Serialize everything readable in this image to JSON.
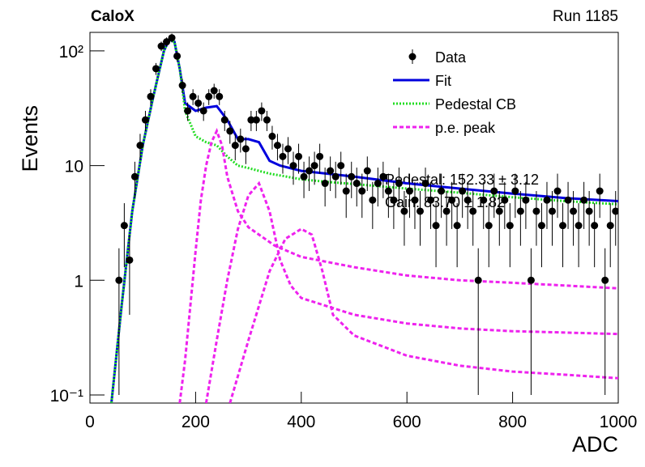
{
  "chart_data": {
    "type": "scatter",
    "title": "CaloX",
    "subtitle": "Run 1185",
    "x_label": "ADC",
    "y_label": "Events",
    "log_y": true,
    "xlim": [
      0,
      1000
    ],
    "xticks": [
      0,
      200,
      400,
      600,
      800,
      1000
    ],
    "ylim": [
      0.085,
      145
    ],
    "yticks": [
      {
        "value": 0.1,
        "label": "10⁻¹"
      },
      1,
      10,
      {
        "value": 100,
        "label": "10²"
      }
    ],
    "legend": "top-right",
    "annotations": [
      "Pedestal: 152.33 ± 3.12",
      "Gain: 83.70 ± 1.82"
    ],
    "series": [
      {
        "name": "Data",
        "color": "#000000",
        "style": "points",
        "x": [
          55,
          65,
          75,
          85,
          95,
          105,
          115,
          125,
          135,
          145,
          155,
          165,
          175,
          185,
          195,
          205,
          215,
          225,
          235,
          245,
          255,
          265,
          275,
          285,
          295,
          305,
          315,
          325,
          335,
          345,
          355,
          365,
          375,
          385,
          395,
          405,
          415,
          425,
          435,
          445,
          455,
          465,
          475,
          485,
          495,
          505,
          515,
          525,
          535,
          545,
          555,
          565,
          575,
          585,
          595,
          605,
          615,
          625,
          635,
          645,
          655,
          665,
          675,
          685,
          695,
          705,
          715,
          725,
          735,
          745,
          755,
          765,
          775,
          785,
          795,
          805,
          815,
          825,
          835,
          845,
          855,
          865,
          875,
          885,
          895,
          905,
          915,
          925,
          935,
          945,
          955,
          965,
          975,
          985,
          995
        ],
        "values": [
          1,
          3,
          1.5,
          8,
          15,
          25,
          40,
          70,
          110,
          120,
          130,
          90,
          50,
          30,
          40,
          35,
          30,
          40,
          45,
          40,
          25,
          20,
          15,
          17,
          14,
          25,
          25,
          30,
          25,
          18,
          15,
          12,
          14,
          10,
          12,
          8,
          9,
          10,
          12,
          7,
          9,
          8,
          10,
          6,
          8,
          7,
          6,
          9,
          5,
          7,
          8,
          6,
          5,
          7,
          4,
          6,
          5,
          4,
          7,
          5,
          3,
          6,
          4,
          5,
          3,
          6,
          5,
          4,
          1,
          5,
          3,
          6,
          4,
          5,
          3,
          6,
          4,
          5,
          1,
          4,
          3,
          5,
          4,
          6,
          3,
          5,
          4,
          3,
          5,
          4,
          3,
          6,
          1,
          3,
          4
        ],
        "errors": [
          0.9,
          1.7,
          1,
          2.8,
          3.9,
          5,
          6.3,
          8.4,
          10.5,
          11,
          11.4,
          9.5,
          7,
          5.5,
          6.3,
          6,
          5.5,
          6.3,
          6.7,
          6.3,
          5,
          4.5,
          3.9,
          4,
          3.7,
          5,
          5,
          5.5,
          5,
          4.2,
          3.9,
          3.5,
          3.7,
          3.2,
          3.5,
          2.8,
          3,
          3.2,
          3.5,
          2.6,
          3,
          2.8,
          3.2,
          2.5,
          2.8,
          2.6,
          2.5,
          3,
          2.2,
          2.6,
          2.8,
          2.5,
          2.2,
          2.6,
          2,
          2.5,
          2.2,
          2,
          2.6,
          2.2,
          1.7,
          2.5,
          2,
          2.2,
          1.7,
          2.5,
          2.2,
          2,
          0.9,
          2.2,
          1.7,
          2.5,
          2,
          2.2,
          1.7,
          2.5,
          2,
          2.2,
          0.9,
          2,
          1.7,
          2.2,
          2,
          2.5,
          1.7,
          2.2,
          2,
          1.7,
          2.2,
          2,
          1.7,
          2.5,
          0.9,
          1.7,
          2
        ]
      },
      {
        "name": "Fit",
        "color": "#0000dd",
        "style": "solid",
        "x": [
          40,
          60,
          80,
          100,
          120,
          140,
          150,
          160,
          170,
          180,
          200,
          220,
          240,
          260,
          280,
          300,
          320,
          340,
          360,
          400,
          450,
          500,
          600,
          700,
          800,
          900,
          1000
        ],
        "values": [
          0.08,
          0.6,
          4,
          15,
          40,
          100,
          125,
          120,
          70,
          35,
          30,
          32,
          33,
          25,
          17,
          17,
          16,
          11,
          10,
          9,
          8.5,
          8,
          7,
          6.3,
          5.7,
          5.2,
          4.9
        ]
      },
      {
        "name": "Pedestal CB",
        "color": "#22dd22",
        "style": "dotted",
        "x": [
          40,
          60,
          80,
          100,
          120,
          140,
          150,
          160,
          170,
          180,
          200,
          220,
          240,
          260,
          280,
          300,
          320,
          340,
          360,
          400,
          450,
          500,
          600,
          700,
          800,
          900,
          1000
        ],
        "values": [
          0.08,
          0.6,
          4,
          15,
          40,
          100,
          125,
          120,
          70,
          30,
          18,
          16,
          15,
          12,
          10,
          9.5,
          9,
          8.5,
          8.2,
          7.6,
          7.2,
          6.9,
          6.3,
          5.8,
          5.3,
          4.9,
          4.6
        ]
      },
      {
        "name": "p.e. peak",
        "color": "#ee22ee",
        "style": "dashed",
        "x": [
          170,
          180,
          190,
          200,
          210,
          220,
          230,
          240,
          250,
          260,
          280,
          300,
          350,
          400,
          500,
          600,
          700,
          800,
          900,
          1000,
          null,
          220,
          240,
          260,
          280,
          300,
          320,
          340,
          360,
          380,
          400,
          500,
          600,
          700,
          800,
          900,
          1000,
          null,
          265,
          300,
          340,
          370,
          400,
          420,
          440,
          460,
          500,
          600,
          700,
          800,
          900,
          1000
        ],
        "values": [
          0.085,
          0.2,
          0.6,
          1.8,
          5,
          10,
          16,
          20,
          15,
          8,
          4,
          2.9,
          2,
          1.6,
          1.3,
          1.1,
          1,
          0.95,
          0.9,
          0.85,
          null,
          0.085,
          0.3,
          1,
          2.8,
          5.5,
          7,
          4,
          1.5,
          0.9,
          0.7,
          0.5,
          0.42,
          0.38,
          0.36,
          0.35,
          0.34,
          null,
          0.085,
          0.3,
          1.2,
          2.3,
          2.8,
          2.5,
          1.2,
          0.5,
          0.33,
          0.22,
          0.18,
          0.16,
          0.15,
          0.14
        ]
      }
    ]
  }
}
